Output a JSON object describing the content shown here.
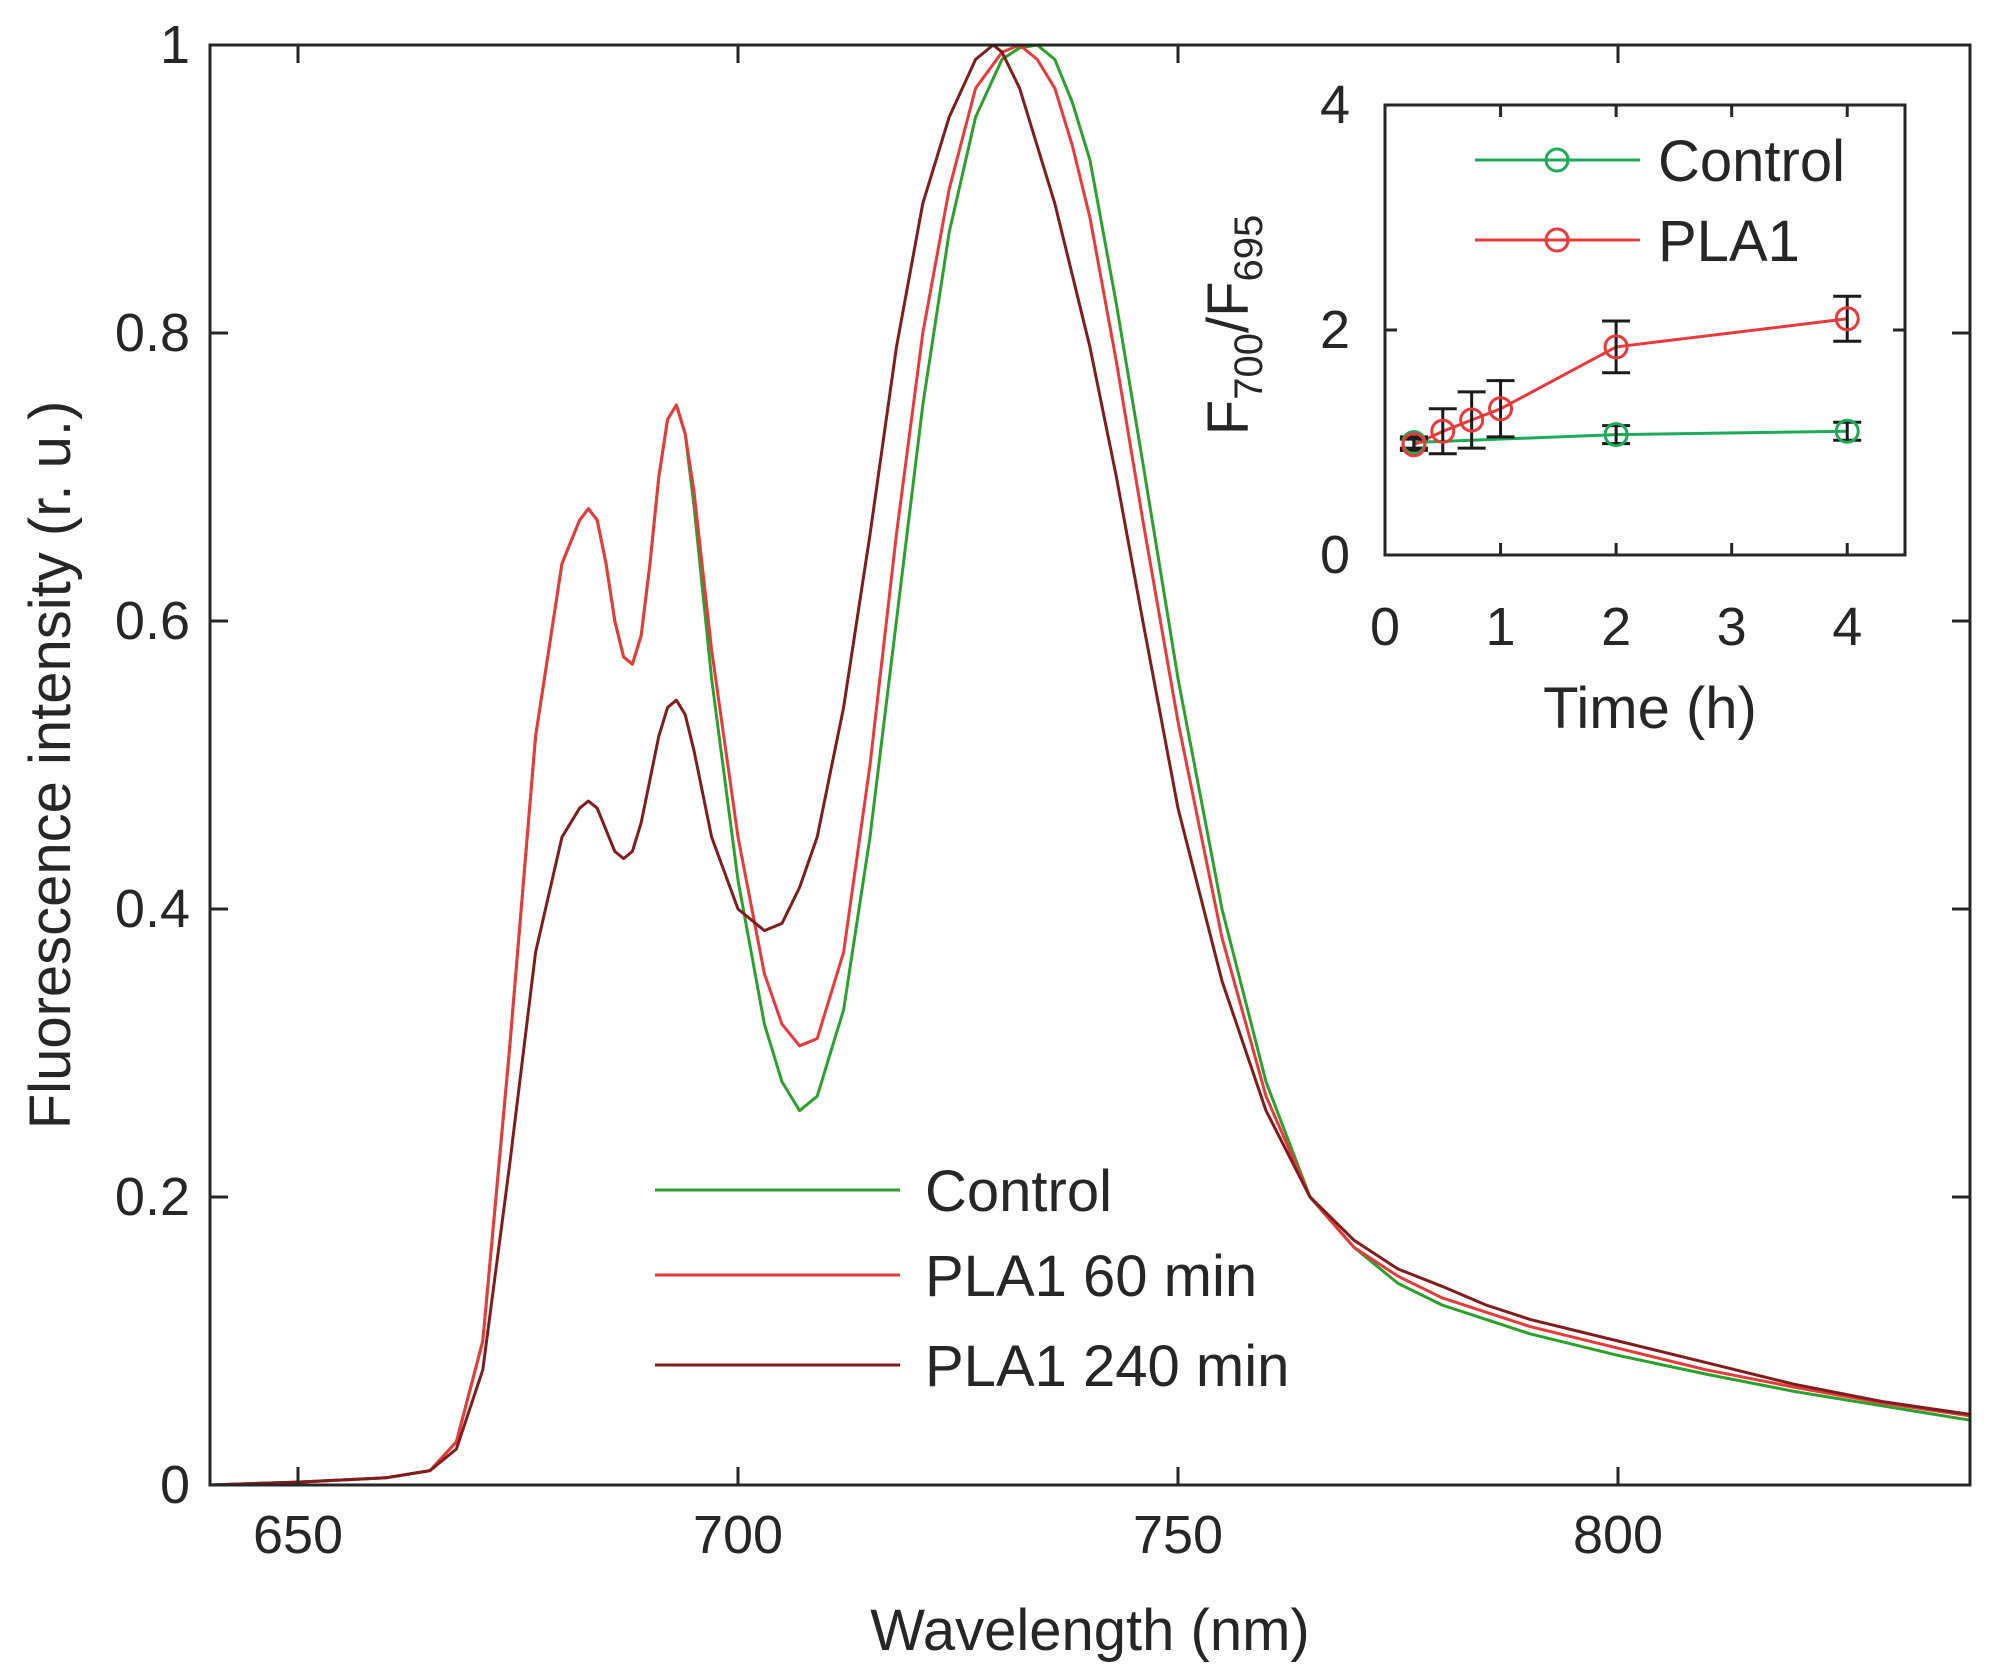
{
  "chart_data": [
    {
      "type": "line",
      "xlabel": "Wavelength (nm)",
      "ylabel": "Fluorescence intensity (r. u.)",
      "xlim": [
        640,
        840
      ],
      "ylim": [
        0,
        1
      ],
      "x_ticks": [
        650,
        700,
        750,
        800
      ],
      "x_tick_labels": [
        "650",
        "700",
        "750",
        "800"
      ],
      "y_ticks": [
        0,
        0.2,
        0.4,
        0.6,
        0.8,
        1
      ],
      "y_tick_labels": [
        "0",
        "0.2",
        "0.4",
        "0.6",
        "0.8",
        "1"
      ],
      "grid": false,
      "legend_position": "bottom-center",
      "series": [
        {
          "name": "Control",
          "color": "#2ca02c",
          "x": [
            640,
            650,
            660,
            665,
            668,
            671,
            674,
            677,
            680,
            682,
            683,
            684,
            685,
            686,
            687,
            688,
            689,
            690,
            691,
            692,
            693,
            694,
            695,
            697,
            700,
            703,
            705,
            707,
            709,
            712,
            715,
            718,
            721,
            724,
            727,
            730,
            732,
            734,
            736,
            738,
            740,
            743,
            746,
            750,
            755,
            760,
            765,
            770,
            775,
            780,
            785,
            790,
            800,
            810,
            820,
            830,
            840
          ],
          "y": [
            0.0,
            0.002,
            0.005,
            0.01,
            0.03,
            0.1,
            0.3,
            0.52,
            0.64,
            0.67,
            0.678,
            0.67,
            0.64,
            0.6,
            0.575,
            0.57,
            0.59,
            0.64,
            0.7,
            0.74,
            0.75,
            0.73,
            0.68,
            0.56,
            0.42,
            0.32,
            0.28,
            0.26,
            0.27,
            0.33,
            0.45,
            0.6,
            0.75,
            0.87,
            0.95,
            0.99,
            0.998,
            1.0,
            0.99,
            0.96,
            0.92,
            0.82,
            0.71,
            0.56,
            0.4,
            0.28,
            0.2,
            0.165,
            0.14,
            0.125,
            0.115,
            0.105,
            0.09,
            0.077,
            0.065,
            0.055,
            0.045
          ]
        },
        {
          "name": "PLA1 60 min",
          "color": "#e8393b",
          "x": [
            640,
            650,
            660,
            665,
            668,
            671,
            674,
            677,
            680,
            682,
            683,
            684,
            685,
            686,
            687,
            688,
            689,
            690,
            691,
            692,
            693,
            694,
            695,
            697,
            700,
            703,
            705,
            707,
            709,
            712,
            715,
            718,
            721,
            724,
            727,
            730,
            732,
            734,
            736,
            738,
            740,
            743,
            746,
            750,
            755,
            760,
            765,
            770,
            775,
            780,
            785,
            790,
            800,
            810,
            820,
            830,
            840
          ],
          "y": [
            0.0,
            0.002,
            0.005,
            0.01,
            0.03,
            0.1,
            0.3,
            0.52,
            0.64,
            0.67,
            0.678,
            0.67,
            0.64,
            0.6,
            0.575,
            0.57,
            0.59,
            0.64,
            0.7,
            0.74,
            0.75,
            0.73,
            0.69,
            0.58,
            0.45,
            0.355,
            0.32,
            0.305,
            0.31,
            0.37,
            0.5,
            0.66,
            0.8,
            0.9,
            0.97,
            0.995,
            1.0,
            0.99,
            0.97,
            0.93,
            0.88,
            0.78,
            0.67,
            0.53,
            0.38,
            0.27,
            0.2,
            0.165,
            0.145,
            0.13,
            0.12,
            0.11,
            0.095,
            0.08,
            0.068,
            0.057,
            0.048
          ]
        },
        {
          "name": "PLA1 240 min",
          "color": "#7f1d1d",
          "x": [
            640,
            650,
            660,
            665,
            668,
            671,
            674,
            677,
            680,
            682,
            683,
            684,
            685,
            686,
            687,
            688,
            689,
            690,
            691,
            692,
            693,
            694,
            695,
            697,
            700,
            703,
            705,
            707,
            709,
            712,
            715,
            718,
            721,
            724,
            727,
            729,
            730,
            732,
            734,
            736,
            738,
            740,
            743,
            746,
            750,
            755,
            760,
            765,
            770,
            775,
            780,
            785,
            790,
            800,
            810,
            820,
            830,
            840
          ],
          "y": [
            0.0,
            0.002,
            0.005,
            0.01,
            0.025,
            0.08,
            0.22,
            0.37,
            0.45,
            0.47,
            0.475,
            0.47,
            0.455,
            0.44,
            0.435,
            0.44,
            0.46,
            0.49,
            0.52,
            0.54,
            0.545,
            0.535,
            0.51,
            0.45,
            0.4,
            0.385,
            0.39,
            0.415,
            0.45,
            0.54,
            0.66,
            0.79,
            0.89,
            0.95,
            0.99,
            1.0,
            0.995,
            0.97,
            0.93,
            0.89,
            0.84,
            0.79,
            0.7,
            0.6,
            0.47,
            0.35,
            0.26,
            0.2,
            0.17,
            0.15,
            0.138,
            0.125,
            0.115,
            0.1,
            0.085,
            0.07,
            0.058,
            0.049
          ]
        }
      ]
    },
    {
      "type": "line",
      "xlabel": "Time (h)",
      "ylabel_main": "F",
      "ylabel_sub1": "700",
      "ylabel_slash": "/F",
      "ylabel_sub2": "695",
      "xlim": [
        0,
        4.5
      ],
      "ylim": [
        0,
        4
      ],
      "x_ticks": [
        0,
        1,
        2,
        3,
        4
      ],
      "x_tick_labels": [
        "0",
        "1",
        "2",
        "3",
        "4"
      ],
      "y_ticks": [
        0,
        2,
        4
      ],
      "y_tick_labels": [
        "0",
        "2",
        "4"
      ],
      "legend_position": "top-right",
      "series": [
        {
          "name": "Control",
          "color": "#1faa5a",
          "x": [
            0.25,
            2,
            4
          ],
          "y": [
            1.0,
            1.07,
            1.1
          ],
          "err": [
            0.05,
            0.08,
            0.08
          ]
        },
        {
          "name": "PLA1",
          "color": "#e8393b",
          "x": [
            0.25,
            0.5,
            0.75,
            1,
            2,
            4
          ],
          "y": [
            0.98,
            1.1,
            1.2,
            1.3,
            1.85,
            2.1
          ],
          "err": [
            0.05,
            0.2,
            0.25,
            0.25,
            0.23,
            0.2
          ]
        }
      ]
    }
  ]
}
